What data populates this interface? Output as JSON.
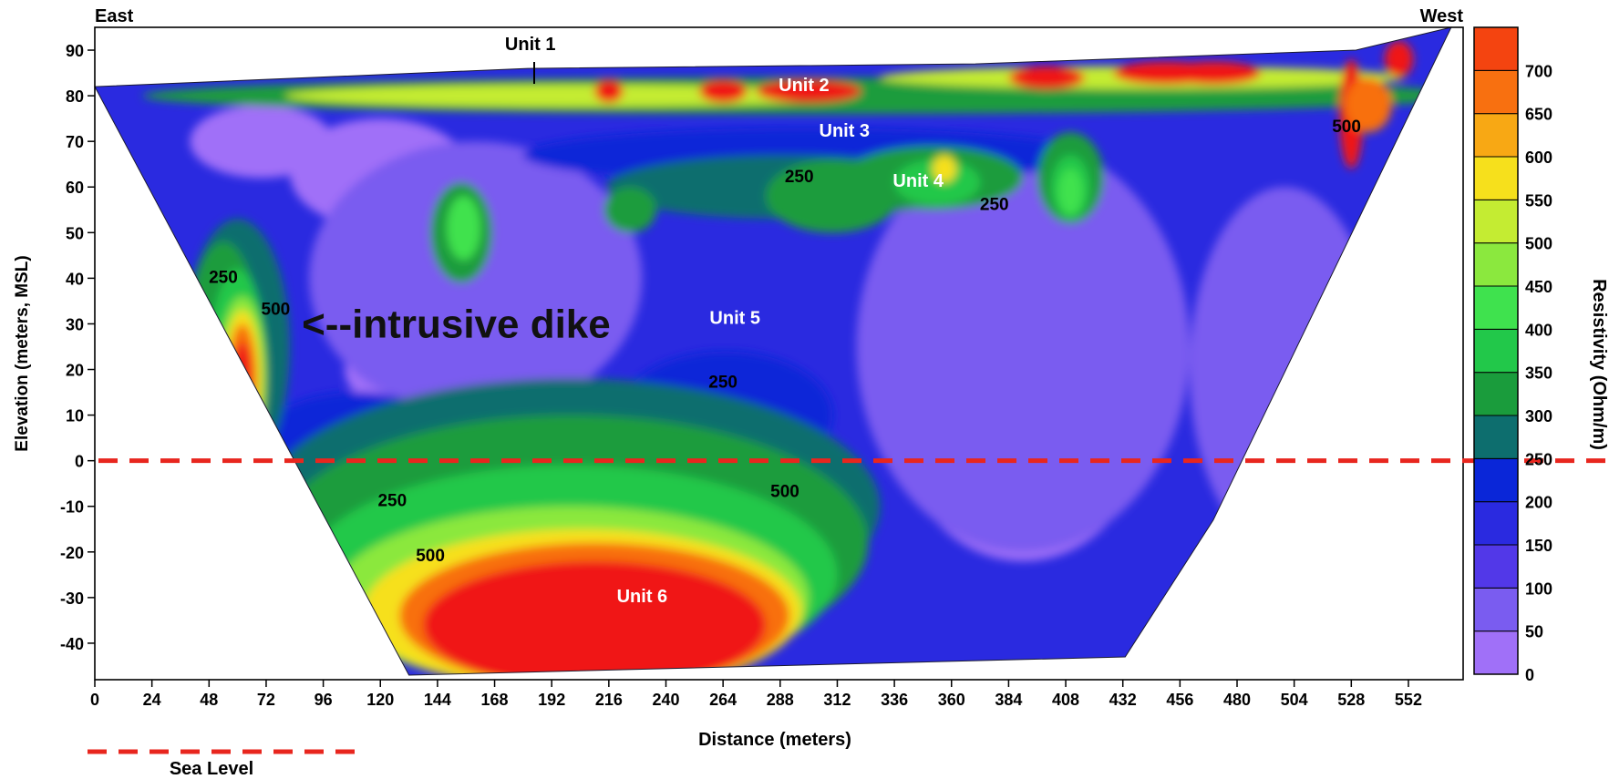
{
  "chart_data": {
    "type": "heatmap",
    "title": "",
    "xlabel": "Distance (meters)",
    "ylabel": "Elevation (meters, MSL)",
    "corner_labels": {
      "left": "East",
      "right": "West"
    },
    "xlim": [
      0,
      575
    ],
    "ylim": [
      -48,
      95
    ],
    "x_ticks": [
      0,
      24,
      48,
      72,
      96,
      120,
      144,
      168,
      192,
      216,
      240,
      264,
      288,
      312,
      336,
      360,
      384,
      408,
      432,
      456,
      480,
      504,
      528,
      552
    ],
    "y_ticks": [
      90,
      80,
      70,
      60,
      50,
      40,
      30,
      20,
      10,
      0,
      -10,
      -20,
      -30,
      -40
    ],
    "colorbar": {
      "label": "Resistivity (Ohm/m)",
      "ticks": [
        700,
        650,
        600,
        550,
        500,
        450,
        400,
        350,
        300,
        250,
        200,
        150,
        100,
        50,
        0
      ],
      "levels": [
        0,
        50,
        100,
        150,
        200,
        250,
        300,
        350,
        400,
        450,
        500,
        550,
        600,
        650,
        700,
        750
      ],
      "colors": [
        "#a070f8",
        "#7a5cf0",
        "#5238e8",
        "#2a2ae0",
        "#0a26d8",
        "#0d6e6e",
        "#1a9c3c",
        "#22c84a",
        "#3fe24e",
        "#8be83e",
        "#c4ec32",
        "#f6e01c",
        "#f8a814",
        "#f87010",
        "#f44410",
        "#f01818"
      ]
    },
    "section_outline": [
      [
        0,
        82
      ],
      [
        182,
        86
      ],
      [
        370,
        87
      ],
      [
        530,
        90
      ],
      [
        570,
        95
      ],
      [
        470,
        -13
      ],
      [
        433,
        -43
      ],
      [
        132,
        -47
      ]
    ],
    "sea_level": {
      "elevation": 0,
      "legend_label": "Sea Level",
      "color": "#e8261e"
    },
    "contour_labels": [
      {
        "text": "250",
        "x": 54,
        "y": 39
      },
      {
        "text": "500",
        "x": 76,
        "y": 32
      },
      {
        "text": "250",
        "x": 125,
        "y": -10
      },
      {
        "text": "500",
        "x": 141,
        "y": -22
      },
      {
        "text": "250",
        "x": 264,
        "y": 16
      },
      {
        "text": "500",
        "x": 290,
        "y": -8
      },
      {
        "text": "250",
        "x": 296,
        "y": 61
      },
      {
        "text": "250",
        "x": 378,
        "y": 55
      },
      {
        "text": "500",
        "x": 526,
        "y": 72
      }
    ],
    "unit_labels": [
      {
        "text": "Unit 1",
        "x": 183,
        "y": 90,
        "color": "#000000"
      },
      {
        "text": "Unit 2",
        "x": 298,
        "y": 81,
        "color": "#ffffff"
      },
      {
        "text": "Unit 3",
        "x": 315,
        "y": 71,
        "color": "#ffffff"
      },
      {
        "text": "Unit 4",
        "x": 346,
        "y": 60,
        "color": "#ffffff"
      },
      {
        "text": "Unit 5",
        "x": 269,
        "y": 30,
        "color": "#ffffff"
      },
      {
        "text": "Unit 6",
        "x": 230,
        "y": -31,
        "color": "#ffffff"
      }
    ],
    "annotations": [
      {
        "text": "<--intrusive dike",
        "x": 87,
        "y": 30
      }
    ]
  }
}
